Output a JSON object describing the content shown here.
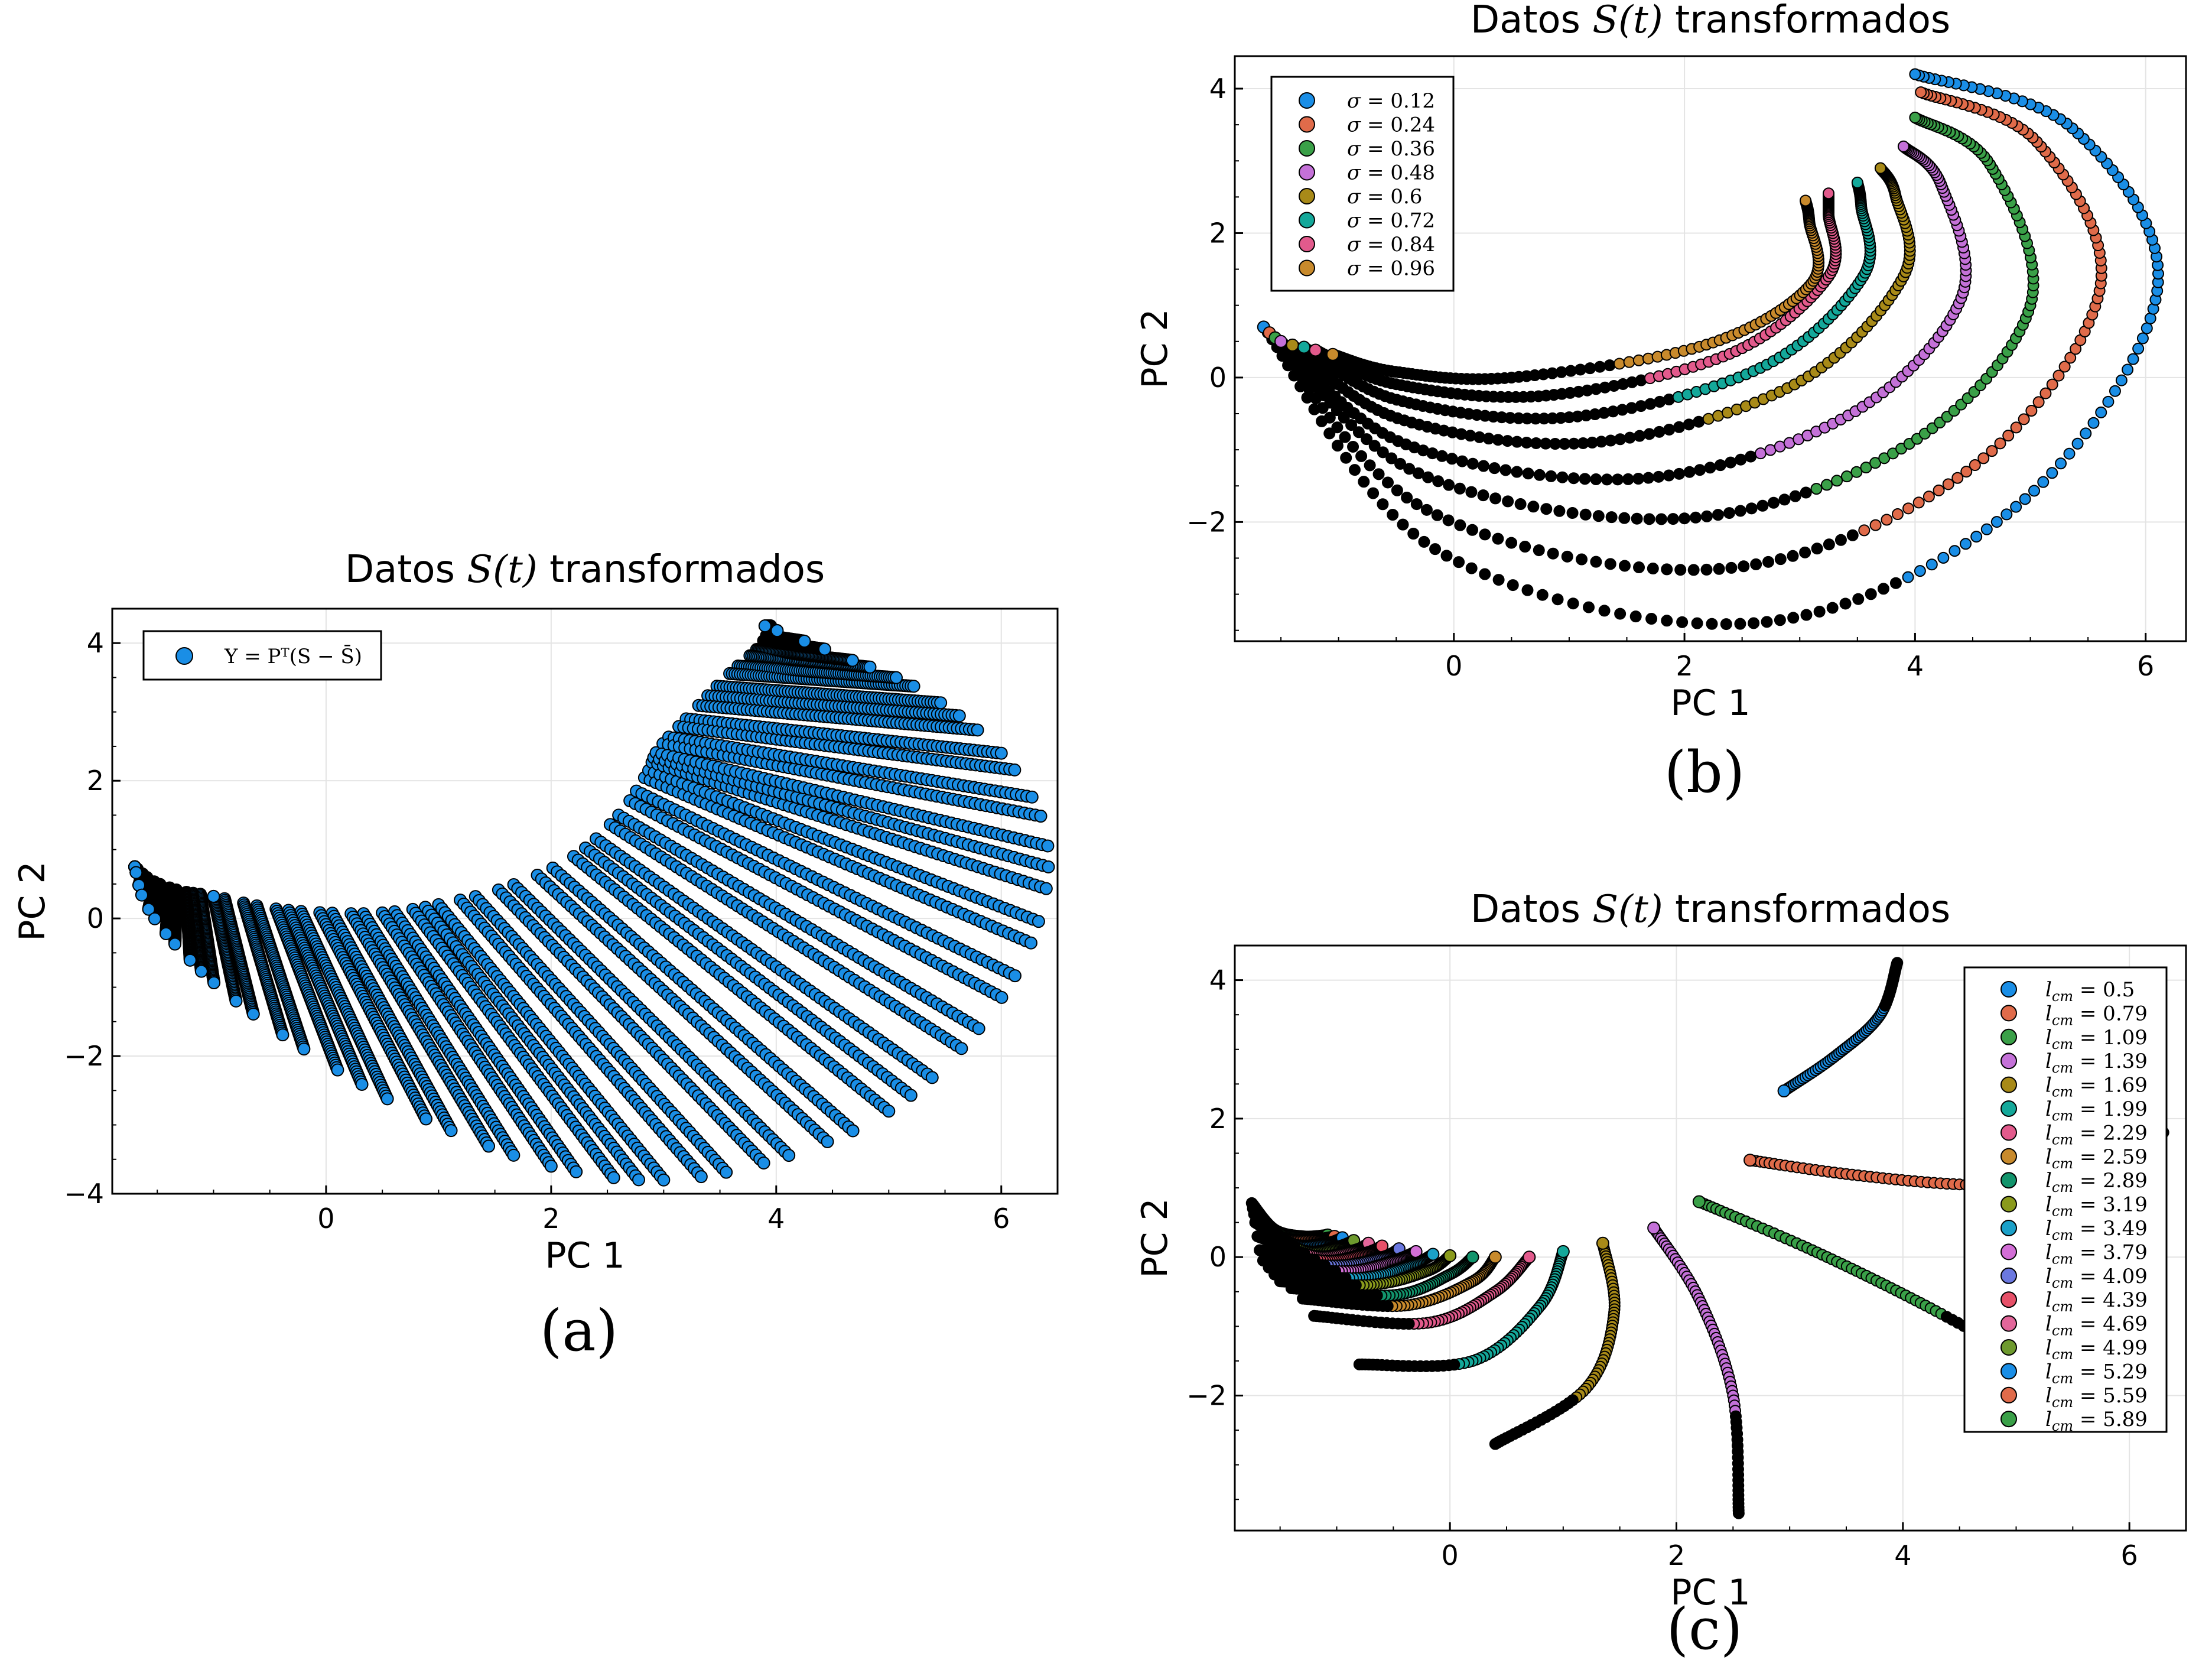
{
  "chart_data": [
    {
      "id": "a",
      "type": "scatter",
      "title_prefix": "Datos ",
      "title_math": "S(t)",
      "title_suffix": " transformados",
      "xlabel": "PC 1",
      "ylabel": "PC 2",
      "xlim": [
        -1.9,
        6.5
      ],
      "ylim": [
        -4.0,
        4.5
      ],
      "xticks": [
        0,
        2,
        4,
        6
      ],
      "yticks": [
        -4,
        -2,
        0,
        2,
        4
      ],
      "grid": true,
      "legend_position": "top-left",
      "caption": "(a)",
      "series": [
        {
          "name": "Y = Pᵀ(S − S̄)",
          "color": "#1a8ee6"
        }
      ],
      "outer_curve": [
        [
          -1.7,
          0.75
        ],
        [
          -1.6,
          0.2
        ],
        [
          -1.3,
          -0.45
        ],
        [
          -0.8,
          -1.2
        ],
        [
          0,
          -2.1
        ],
        [
          1,
          -3.0
        ],
        [
          2,
          -3.6
        ],
        [
          3,
          -3.8
        ],
        [
          4,
          -3.5
        ],
        [
          5,
          -2.8
        ],
        [
          5.8,
          -1.6
        ],
        [
          6.3,
          -0.2
        ],
        [
          6.4,
          1.2
        ],
        [
          6.0,
          2.4
        ],
        [
          5.3,
          3.3
        ],
        [
          4.6,
          3.8
        ],
        [
          3.9,
          4.25
        ]
      ],
      "inner_curve": [
        [
          -1.0,
          0.32
        ],
        [
          -0.5,
          0.15
        ],
        [
          0,
          0.08
        ],
        [
          0.5,
          0.08
        ],
        [
          1,
          0.2
        ],
        [
          1.6,
          0.45
        ],
        [
          2.2,
          0.9
        ],
        [
          2.6,
          1.5
        ],
        [
          2.85,
          2.1
        ],
        [
          2.95,
          2.45
        ]
      ],
      "top_arc": [
        [
          2.95,
          2.45
        ],
        [
          3.2,
          2.9
        ],
        [
          3.55,
          3.5
        ],
        [
          3.85,
          3.95
        ],
        [
          3.95,
          4.25
        ]
      ],
      "start_tail": [
        [
          -1.7,
          0.75
        ],
        [
          -1.55,
          0.55
        ],
        [
          -1.3,
          0.4
        ],
        [
          -1.0,
          0.32
        ]
      ]
    },
    {
      "id": "b",
      "type": "scatter",
      "title_prefix": "Datos ",
      "title_math": "S(t)",
      "title_suffix": " transformados",
      "xlabel": "PC 1",
      "ylabel": "PC 2",
      "xlim": [
        -1.9,
        6.35
      ],
      "ylim": [
        -3.65,
        4.45
      ],
      "xticks": [
        0,
        2,
        4,
        6
      ],
      "yticks": [
        -2,
        0,
        2,
        4
      ],
      "grid": true,
      "legend_position": "top-left",
      "legend_var": "σ",
      "caption": "(b)",
      "series": [
        {
          "name": "0.12",
          "color": "#1a8ee6",
          "start": [
            -1.65,
            0.7
          ],
          "bottom": [
            2.6,
            -3.4
          ],
          "right": [
            6.1,
            1.2
          ],
          "end": [
            4.0,
            4.2
          ]
        },
        {
          "name": "0.24",
          "color": "#e06b4a",
          "start": [
            -1.6,
            0.62
          ],
          "bottom": [
            2.3,
            -2.65
          ],
          "right": [
            5.6,
            1.2
          ],
          "end": [
            4.05,
            3.95
          ]
        },
        {
          "name": "0.36",
          "color": "#3aa048",
          "start": [
            -1.55,
            0.55
          ],
          "bottom": [
            2.0,
            -1.95
          ],
          "right": [
            5.0,
            1.0
          ],
          "end": [
            4.0,
            3.6
          ]
        },
        {
          "name": "0.48",
          "color": "#c471d8",
          "start": [
            -1.5,
            0.5
          ],
          "bottom": [
            1.6,
            -1.4
          ],
          "right": [
            4.4,
            1.1
          ],
          "end": [
            3.9,
            3.2
          ]
        },
        {
          "name": "0.6",
          "color": "#a88a18",
          "start": [
            -1.4,
            0.45
          ],
          "bottom": [
            1.2,
            -0.9
          ],
          "right": [
            3.9,
            1.4
          ],
          "end": [
            3.7,
            2.9
          ]
        },
        {
          "name": "0.72",
          "color": "#14a89a",
          "start": [
            -1.3,
            0.42
          ],
          "bottom": [
            1.0,
            -0.55
          ],
          "right": [
            3.55,
            1.4
          ],
          "end": [
            3.5,
            2.7
          ]
        },
        {
          "name": "0.84",
          "color": "#e25a8c",
          "start": [
            -1.2,
            0.38
          ],
          "bottom": [
            0.8,
            -0.25
          ],
          "right": [
            3.25,
            1.4
          ],
          "end": [
            3.25,
            2.55
          ]
        },
        {
          "name": "0.96",
          "color": "#c88a2c",
          "start": [
            -1.05,
            0.32
          ],
          "bottom": [
            0.5,
            0.0
          ],
          "right": [
            3.1,
            1.3
          ],
          "end": [
            3.05,
            2.45
          ]
        }
      ]
    },
    {
      "id": "c",
      "type": "scatter",
      "title_prefix": "Datos ",
      "title_math": "S(t)",
      "title_suffix": " transformados",
      "xlabel": "PC 1",
      "ylabel": "PC 2",
      "xlim": [
        -1.9,
        6.5
      ],
      "ylim": [
        -3.95,
        4.5
      ],
      "xticks": [
        0,
        2,
        4,
        6
      ],
      "yticks": [
        -2,
        0,
        2,
        4
      ],
      "grid": true,
      "legend_position": "right",
      "legend_var": "lcm",
      "caption": "(c)",
      "series": [
        {
          "name": "0.5",
          "color": "#1a8ee6",
          "points": [
            [
              2.95,
              2.4
            ],
            [
              3.4,
              2.9
            ],
            [
              3.8,
              3.5
            ],
            [
              3.95,
              4.25
            ]
          ]
        },
        {
          "name": "0.79",
          "color": "#e06b4a",
          "points": [
            [
              2.65,
              1.4
            ],
            [
              3.5,
              1.2
            ],
            [
              4.5,
              1.05
            ],
            [
              5.5,
              1.05
            ],
            [
              6.3,
              1.8
            ]
          ]
        },
        {
          "name": "1.09",
          "color": "#3aa048",
          "points": [
            [
              2.2,
              0.8
            ],
            [
              3.2,
              0.1
            ],
            [
              4.2,
              -0.7
            ],
            [
              5.2,
              -1.6
            ]
          ]
        },
        {
          "name": "1.39",
          "color": "#c471d8",
          "points": [
            [
              1.8,
              0.42
            ],
            [
              2.2,
              -0.6
            ],
            [
              2.5,
              -2.0
            ],
            [
              2.55,
              -3.7
            ]
          ]
        },
        {
          "name": "1.69",
          "color": "#a88a18",
          "points": [
            [
              1.35,
              0.2
            ],
            [
              1.45,
              -0.8
            ],
            [
              1.2,
              -1.9
            ],
            [
              0.4,
              -2.7
            ]
          ]
        },
        {
          "name": "1.99",
          "color": "#14a89a",
          "points": [
            [
              1.0,
              0.08
            ],
            [
              0.8,
              -0.7
            ],
            [
              0.2,
              -1.5
            ],
            [
              -0.8,
              -1.55
            ]
          ]
        },
        {
          "name": "2.29",
          "color": "#e25a8c",
          "points": [
            [
              0.7,
              0.0
            ],
            [
              0.4,
              -0.5
            ],
            [
              -0.2,
              -0.95
            ],
            [
              -1.2,
              -0.85
            ]
          ]
        },
        {
          "name": "2.59",
          "color": "#c88a2c",
          "points": [
            [
              0.4,
              0.0
            ],
            [
              0.2,
              -0.35
            ],
            [
              -0.4,
              -0.7
            ],
            [
              -1.3,
              -0.6
            ]
          ]
        },
        {
          "name": "2.89",
          "color": "#12946c",
          "points": [
            [
              0.2,
              0.0
            ],
            [
              0.0,
              -0.25
            ],
            [
              -0.5,
              -0.55
            ],
            [
              -1.4,
              -0.45
            ]
          ]
        },
        {
          "name": "3.19",
          "color": "#8a9a1c",
          "points": [
            [
              0.0,
              0.02
            ],
            [
              -0.2,
              -0.2
            ],
            [
              -0.7,
              -0.4
            ],
            [
              -1.5,
              -0.35
            ]
          ]
        },
        {
          "name": "3.49",
          "color": "#1ba0c8",
          "points": [
            [
              -0.15,
              0.04
            ],
            [
              -0.35,
              -0.12
            ],
            [
              -0.8,
              -0.3
            ],
            [
              -1.55,
              -0.25
            ]
          ]
        },
        {
          "name": "3.79",
          "color": "#d26ed6",
          "points": [
            [
              -0.3,
              0.08
            ],
            [
              -0.5,
              -0.05
            ],
            [
              -0.9,
              -0.2
            ],
            [
              -1.6,
              -0.15
            ]
          ]
        },
        {
          "name": "4.09",
          "color": "#6b78e0",
          "points": [
            [
              -0.45,
              0.12
            ],
            [
              -0.6,
              0.0
            ],
            [
              -1.0,
              -0.12
            ],
            [
              -1.65,
              -0.05
            ]
          ]
        },
        {
          "name": "4.39",
          "color": "#e65068",
          "points": [
            [
              -0.6,
              0.16
            ],
            [
              -0.75,
              0.06
            ],
            [
              -1.1,
              -0.05
            ],
            [
              -1.68,
              0.1
            ]
          ]
        },
        {
          "name": "4.69",
          "color": "#e2669a",
          "points": [
            [
              -0.72,
              0.2
            ],
            [
              -0.85,
              0.1
            ],
            [
              -1.2,
              0.02
            ],
            [
              -1.7,
              0.3
            ]
          ]
        },
        {
          "name": "4.99",
          "color": "#6e9a2e",
          "points": [
            [
              -0.85,
              0.24
            ],
            [
              -1.0,
              0.15
            ],
            [
              -1.3,
              0.1
            ],
            [
              -1.72,
              0.5
            ]
          ]
        },
        {
          "name": "5.29",
          "color": "#1a8ee6",
          "points": [
            [
              -0.95,
              0.28
            ],
            [
              -1.1,
              0.2
            ],
            [
              -1.4,
              0.2
            ],
            [
              -1.73,
              0.62
            ]
          ]
        },
        {
          "name": "5.59",
          "color": "#e06b4a",
          "points": [
            [
              -1.02,
              0.3
            ],
            [
              -1.2,
              0.26
            ],
            [
              -1.5,
              0.3
            ],
            [
              -1.74,
              0.7
            ]
          ]
        },
        {
          "name": "5.89",
          "color": "#3aa048",
          "points": [
            [
              -1.08,
              0.32
            ],
            [
              -1.3,
              0.3
            ],
            [
              -1.55,
              0.4
            ],
            [
              -1.75,
              0.78
            ]
          ]
        }
      ]
    }
  ]
}
